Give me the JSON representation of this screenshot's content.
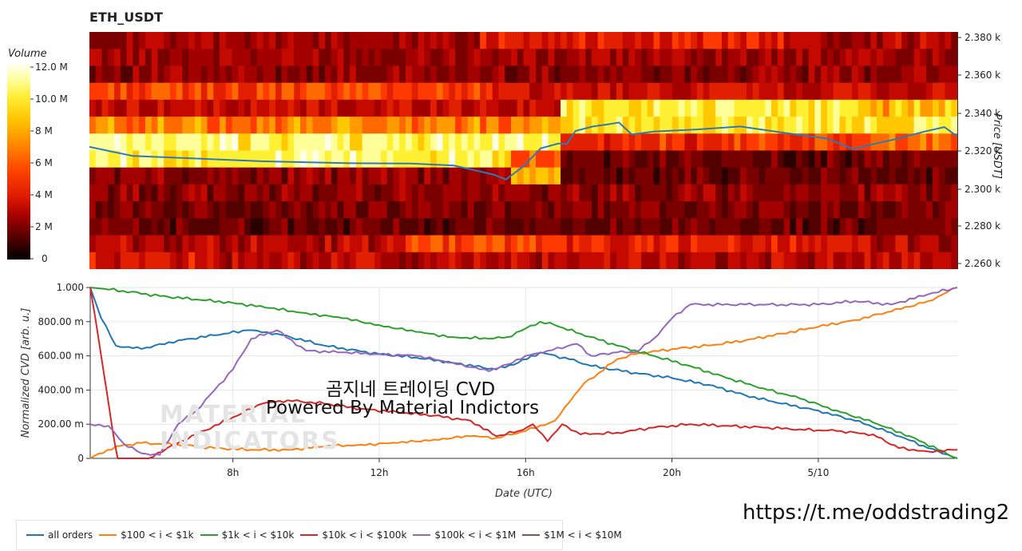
{
  "header": {
    "title": "ETH_USDT"
  },
  "colorbar": {
    "title": "Volume",
    "ticks": [
      "12.0 M",
      "10.0 M",
      "8 M",
      "6 M",
      "4 M",
      "2 M",
      "0"
    ]
  },
  "heatmap": {
    "price_axis_label": "Price [USDT]",
    "price_ticks": [
      "2.380 k",
      "2.360 k",
      "2.340 k",
      "2.320 k",
      "2.300 k",
      "2.280 k",
      "2.260 k"
    ]
  },
  "overlay": {
    "line1": "곰지네 트레이딩 CVD",
    "line2": "Powered By Material Indictors",
    "watermark1": "MATERIAL",
    "watermark2": "INDICATORS"
  },
  "footer": {
    "url": "https://t.me/oddstrading2"
  },
  "colors": {
    "all_orders": "#1f77b4",
    "s100_1k": "#ff7f0e",
    "s1k_10k": "#2ca02c",
    "s10k_100k": "#d62728",
    "s100k_1m": "#9467bd",
    "s1m_10m": "#8c564b",
    "price_line": "#2e7ab8"
  },
  "chart_data": [
    {
      "type": "heatmap",
      "title": "ETH_USDT",
      "ylabel": "Price [USDT]",
      "ylim": [
        2255,
        2385
      ],
      "colorbar_label": "Volume",
      "colorbar_range": [
        0,
        12.5
      ],
      "price_line": [
        [
          0,
          2322
        ],
        [
          0.05,
          2316
        ],
        [
          0.1,
          2315
        ],
        [
          0.2,
          2314
        ],
        [
          0.3,
          2314
        ],
        [
          0.37,
          2314
        ],
        [
          0.42,
          2312
        ],
        [
          0.465,
          2306
        ],
        [
          0.48,
          2303
        ],
        [
          0.5,
          2311
        ],
        [
          0.52,
          2322
        ],
        [
          0.54,
          2325
        ],
        [
          0.55,
          2324
        ],
        [
          0.56,
          2330
        ],
        [
          0.58,
          2332
        ],
        [
          0.6,
          2334
        ],
        [
          0.61,
          2336
        ],
        [
          0.625,
          2330
        ],
        [
          0.65,
          2331
        ],
        [
          0.7,
          2331
        ],
        [
          0.75,
          2332
        ],
        [
          0.8,
          2329
        ],
        [
          0.85,
          2327
        ],
        [
          0.88,
          2322
        ],
        [
          0.9,
          2324
        ],
        [
          0.93,
          2326
        ],
        [
          0.96,
          2329
        ],
        [
          0.985,
          2332
        ],
        [
          1,
          2328
        ]
      ]
    },
    {
      "type": "line",
      "xlabel": "Date (UTC)",
      "ylabel": "Normalized CVD [arb. u.]",
      "x_ticks": [
        "8h",
        "12h",
        "16h",
        "20h",
        "5/10"
      ],
      "y_ticks": [
        "0",
        "200.00 m",
        "400.00 m",
        "600.00 m",
        "800.00 m",
        "1.000"
      ],
      "xlim": [
        4.1,
        27.8
      ],
      "ylim": [
        0,
        1.0
      ],
      "series": [
        {
          "name": "all orders",
          "color_key": "all_orders",
          "points": [
            [
              4.1,
              1.0
            ],
            [
              4.4,
              0.82
            ],
            [
              4.8,
              0.66
            ],
            [
              5.5,
              0.64
            ],
            [
              6.5,
              0.69
            ],
            [
              7.5,
              0.72
            ],
            [
              8.4,
              0.75
            ],
            [
              9.2,
              0.73
            ],
            [
              10.5,
              0.66
            ],
            [
              12,
              0.61
            ],
            [
              13,
              0.59
            ],
            [
              14,
              0.56
            ],
            [
              15.2,
              0.52
            ],
            [
              15.8,
              0.56
            ],
            [
              16.4,
              0.62
            ],
            [
              17.2,
              0.58
            ],
            [
              17.8,
              0.54
            ],
            [
              19,
              0.5
            ],
            [
              20,
              0.47
            ],
            [
              21,
              0.43
            ],
            [
              22,
              0.37
            ],
            [
              23,
              0.32
            ],
            [
              24,
              0.28
            ],
            [
              25,
              0.22
            ],
            [
              26,
              0.15
            ],
            [
              27,
              0.06
            ],
            [
              27.8,
              0.0
            ]
          ]
        },
        {
          "name": "$100 < i < $1k",
          "color_key": "s100_1k",
          "points": [
            [
              4.1,
              0.0
            ],
            [
              4.8,
              0.07
            ],
            [
              5.5,
              0.09
            ],
            [
              6.5,
              0.08
            ],
            [
              7.5,
              0.06
            ],
            [
              8.5,
              0.05
            ],
            [
              9.5,
              0.05
            ],
            [
              10.5,
              0.07
            ],
            [
              11.5,
              0.08
            ],
            [
              12.5,
              0.09
            ],
            [
              13.5,
              0.11
            ],
            [
              14.5,
              0.13
            ],
            [
              15.2,
              0.12
            ],
            [
              16,
              0.16
            ],
            [
              16.8,
              0.22
            ],
            [
              17.2,
              0.33
            ],
            [
              17.6,
              0.44
            ],
            [
              18,
              0.5
            ],
            [
              18.5,
              0.58
            ],
            [
              19,
              0.61
            ],
            [
              20,
              0.64
            ],
            [
              21,
              0.66
            ],
            [
              22,
              0.69
            ],
            [
              23,
              0.73
            ],
            [
              24,
              0.77
            ],
            [
              25,
              0.81
            ],
            [
              26,
              0.86
            ],
            [
              27,
              0.92
            ],
            [
              27.8,
              1.0
            ]
          ]
        },
        {
          "name": "$1k < i < $10k",
          "color_key": "s1k_10k",
          "points": [
            [
              4.1,
              1.0
            ],
            [
              5,
              0.98
            ],
            [
              6,
              0.95
            ],
            [
              7,
              0.93
            ],
            [
              8,
              0.91
            ],
            [
              9,
              0.88
            ],
            [
              10,
              0.85
            ],
            [
              11,
              0.82
            ],
            [
              12,
              0.78
            ],
            [
              13,
              0.74
            ],
            [
              14,
              0.71
            ],
            [
              15,
              0.7
            ],
            [
              15.5,
              0.71
            ],
            [
              16,
              0.76
            ],
            [
              16.4,
              0.8
            ],
            [
              16.8,
              0.78
            ],
            [
              17.5,
              0.73
            ],
            [
              18.5,
              0.66
            ],
            [
              19.5,
              0.6
            ],
            [
              20.5,
              0.54
            ],
            [
              21.5,
              0.47
            ],
            [
              22.5,
              0.41
            ],
            [
              23.5,
              0.35
            ],
            [
              24.5,
              0.28
            ],
            [
              25.5,
              0.21
            ],
            [
              26.5,
              0.13
            ],
            [
              27.8,
              0.0
            ]
          ]
        },
        {
          "name": "$10k < i < $100k",
          "color_key": "s10k_100k",
          "points": [
            [
              4.1,
              1.0
            ],
            [
              4.4,
              0.6
            ],
            [
              4.7,
              0.18
            ],
            [
              4.85,
              0.0
            ],
            [
              5.7,
              0.0
            ],
            [
              6.2,
              0.06
            ],
            [
              7,
              0.14
            ],
            [
              8,
              0.24
            ],
            [
              8.8,
              0.32
            ],
            [
              9.5,
              0.34
            ],
            [
              10.5,
              0.32
            ],
            [
              11.5,
              0.29
            ],
            [
              12.5,
              0.27
            ],
            [
              13.5,
              0.25
            ],
            [
              14.5,
              0.22
            ],
            [
              15.2,
              0.13
            ],
            [
              15.8,
              0.16
            ],
            [
              16.2,
              0.2
            ],
            [
              16.6,
              0.1
            ],
            [
              17,
              0.2
            ],
            [
              17.5,
              0.14
            ],
            [
              18.5,
              0.15
            ],
            [
              19.5,
              0.18
            ],
            [
              20.5,
              0.2
            ],
            [
              21.5,
              0.19
            ],
            [
              22.5,
              0.18
            ],
            [
              23.5,
              0.17
            ],
            [
              24.5,
              0.16
            ],
            [
              25.5,
              0.14
            ],
            [
              26.2,
              0.06
            ],
            [
              27,
              0.04
            ],
            [
              27.8,
              0.05
            ]
          ]
        },
        {
          "name": "$100k < i < $1M",
          "color_key": "s100k_1m",
          "points": [
            [
              4.1,
              0.2
            ],
            [
              4.6,
              0.19
            ],
            [
              5,
              0.09
            ],
            [
              5.5,
              0.03
            ],
            [
              6,
              0.02
            ],
            [
              6.5,
              0.2
            ],
            [
              7,
              0.28
            ],
            [
              7.5,
              0.4
            ],
            [
              8,
              0.52
            ],
            [
              8.5,
              0.7
            ],
            [
              9.2,
              0.75
            ],
            [
              10,
              0.63
            ],
            [
              11,
              0.62
            ],
            [
              12,
              0.61
            ],
            [
              13,
              0.6
            ],
            [
              14,
              0.56
            ],
            [
              15,
              0.51
            ],
            [
              15.5,
              0.55
            ],
            [
              16,
              0.6
            ],
            [
              16.6,
              0.63
            ],
            [
              17.4,
              0.67
            ],
            [
              17.8,
              0.6
            ],
            [
              18.5,
              0.62
            ],
            [
              19,
              0.62
            ],
            [
              19.5,
              0.7
            ],
            [
              20,
              0.82
            ],
            [
              20.5,
              0.9
            ],
            [
              22,
              0.9
            ],
            [
              23,
              0.9
            ],
            [
              24,
              0.9
            ],
            [
              25,
              0.92
            ],
            [
              26,
              0.9
            ],
            [
              27,
              0.96
            ],
            [
              27.8,
              1.0
            ]
          ]
        },
        {
          "name": "$1M < i < $10M",
          "color_key": "s1m_10m",
          "points": []
        }
      ]
    }
  ],
  "legend": {
    "items": [
      {
        "label": "all orders",
        "color_key": "all_orders"
      },
      {
        "label": "$100 < i < $1k",
        "color_key": "s100_1k"
      },
      {
        "label": "$1k < i < $10k",
        "color_key": "s1k_10k"
      },
      {
        "label": "$10k < i < $100k",
        "color_key": "s10k_100k"
      },
      {
        "label": "$100k < i < $1M",
        "color_key": "s100k_1m"
      },
      {
        "label": "$1M < i < $10M",
        "color_key": "s1m_10m"
      }
    ]
  }
}
